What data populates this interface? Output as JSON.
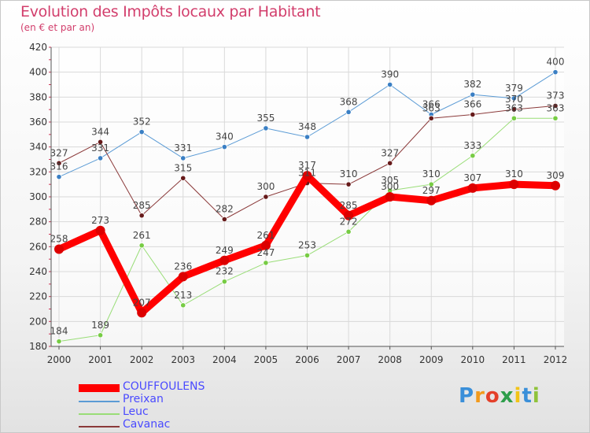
{
  "title": "Evolution des Impôts locaux par Habitant",
  "subtitle": "(en € et par an)",
  "logo": {
    "letters": [
      "P",
      "r",
      "o",
      "x",
      "i",
      "t",
      "i"
    ],
    "colors": [
      "#3a8fd9",
      "#f29a1c",
      "#e4402a",
      "#2e9e4b",
      "#f2c417",
      "#3a8fd9",
      "#8fc33a"
    ]
  },
  "colors": {
    "title": "#d23e6c",
    "legend_text": "#4a4aff",
    "grid": "#d9d9d9",
    "axis": "#555555"
  },
  "chart_data": {
    "type": "line",
    "title": "Evolution des Impôts locaux par Habitant",
    "subtitle": "(en € et par an)",
    "xlabel": "",
    "ylabel": "",
    "ylim": [
      180,
      420
    ],
    "yticks": [
      180,
      200,
      220,
      240,
      260,
      280,
      300,
      320,
      340,
      360,
      380,
      400,
      420
    ],
    "categories": [
      "2000",
      "2001",
      "2002",
      "2003",
      "2004",
      "2005",
      "2006",
      "2007",
      "2008",
      "2009",
      "2010",
      "2011",
      "2012"
    ],
    "grid": true,
    "legend_position": "bottom-left",
    "series": [
      {
        "name": "COUFFOULENS",
        "color": "#ff0000",
        "marker": "#dd0000",
        "width": 9,
        "values": [
          258,
          273,
          207,
          236,
          249,
          261,
          317,
          285,
          300,
          297,
          307,
          310,
          309
        ],
        "labels": [
          "258",
          "273",
          "207",
          "236",
          "249",
          "261",
          "317",
          "285",
          "300",
          "297",
          "307",
          "310",
          "309"
        ]
      },
      {
        "name": "Preixan",
        "color": "#5b9bd5",
        "marker": "#3a7fc4",
        "width": 1,
        "values": [
          316,
          331,
          352,
          331,
          340,
          355,
          348,
          368,
          390,
          366,
          382,
          379,
          400
        ],
        "labels": [
          "316",
          "331",
          "352",
          "331",
          "340",
          "355",
          "348",
          "368",
          "390",
          "366",
          "382",
          "379",
          "400"
        ]
      },
      {
        "name": "Leuc",
        "color": "#99dd77",
        "marker": "#77cc44",
        "width": 1,
        "values": [
          184,
          189,
          261,
          213,
          232,
          247,
          253,
          272,
          305,
          310,
          333,
          363,
          363
        ],
        "labels": [
          "184",
          "189",
          "261",
          "213",
          "232",
          "247",
          "253",
          "272",
          "305",
          "310",
          "333",
          "363",
          "363"
        ]
      },
      {
        "name": "Cavanac",
        "color": "#8b3a3a",
        "marker": "#661a1a",
        "width": 1,
        "values": [
          327,
          344,
          285,
          315,
          282,
          300,
          311,
          310,
          327,
          363,
          366,
          370,
          373
        ],
        "labels": [
          "327",
          "344",
          "285",
          "315",
          "282",
          "300",
          "311",
          "310",
          "327",
          "363",
          "366",
          "370",
          "373"
        ]
      }
    ]
  }
}
